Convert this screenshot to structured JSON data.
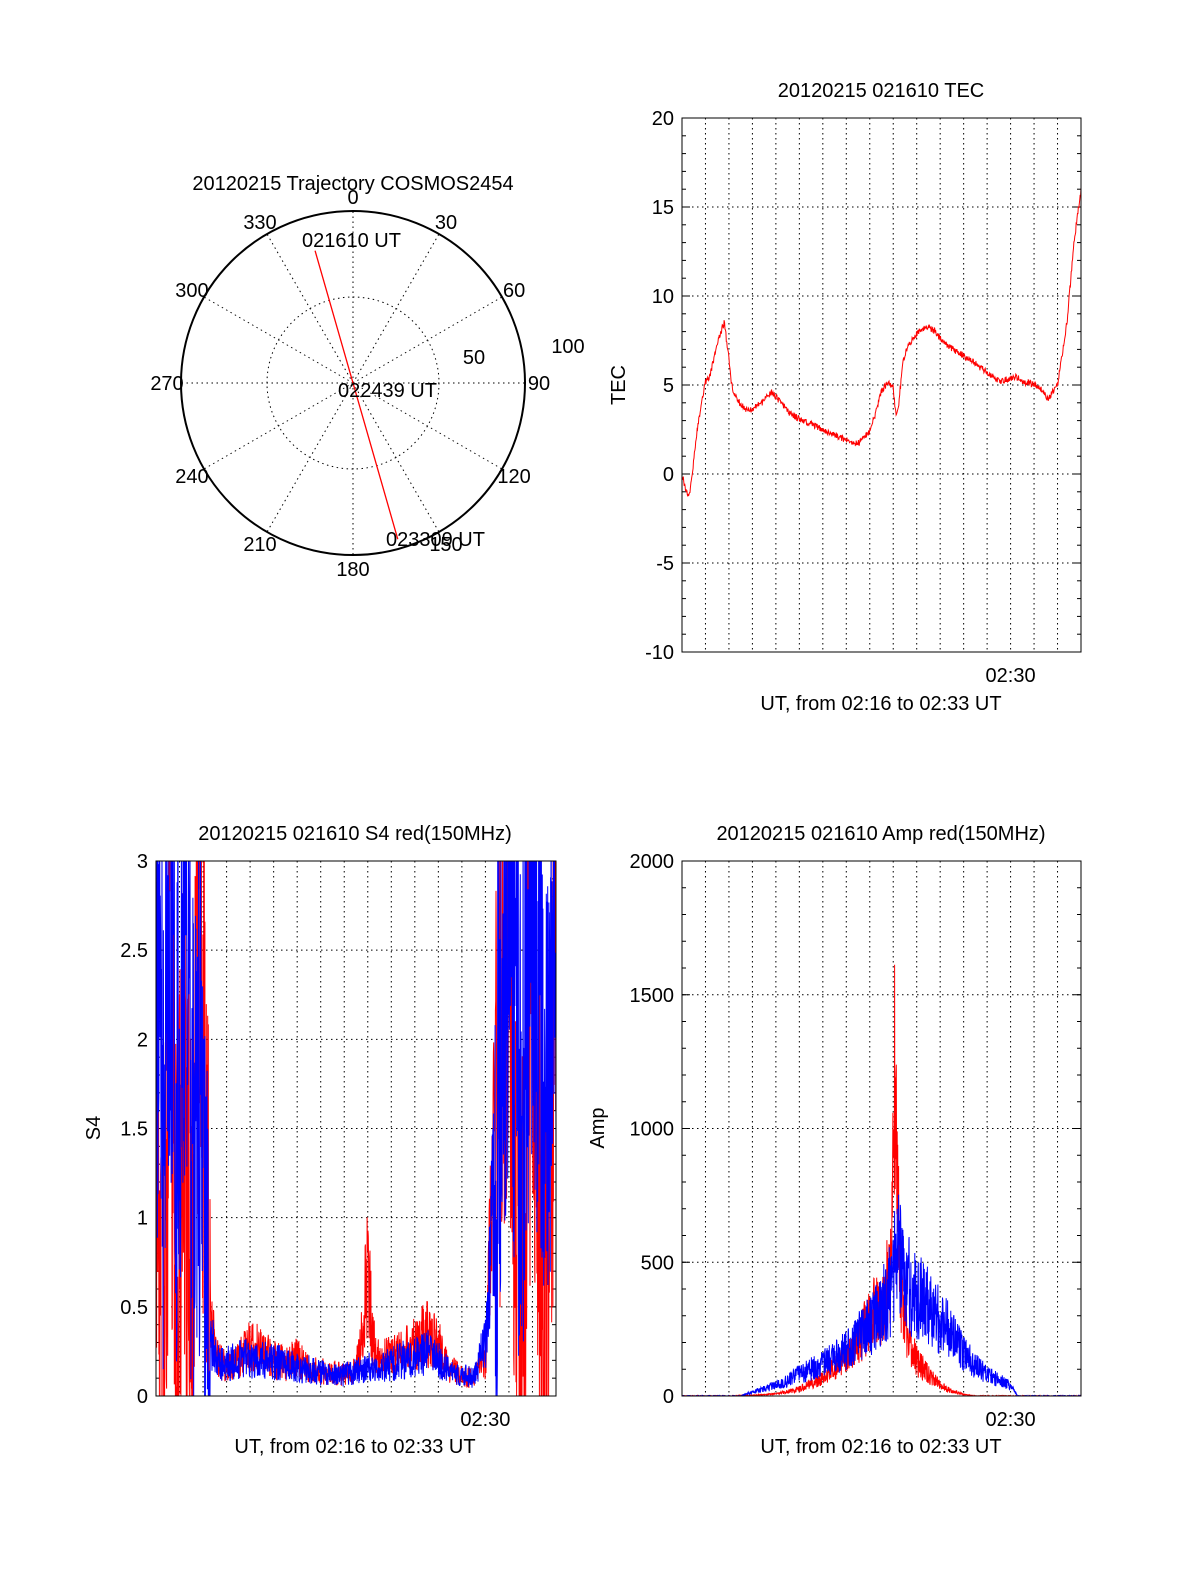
{
  "chart_data": [
    {
      "type": "polar",
      "title": "20120215 Trajectory COSMOS2454",
      "angle_labels": [
        "0",
        "30",
        "60",
        "90",
        "120",
        "150",
        "180",
        "210",
        "240",
        "270",
        "300",
        "330"
      ],
      "radius_labels": [
        "50",
        "100"
      ],
      "series": [
        {
          "color": "#ff0000",
          "points": [
            {
              "azimuth": 344,
              "elevation": 18,
              "label": "021610 UT"
            },
            {
              "azimuth": 90,
              "elevation": 90,
              "label": "022439 UT"
            },
            {
              "azimuth": 164,
              "elevation": 5,
              "label": "023309 UT"
            }
          ]
        }
      ]
    },
    {
      "type": "line",
      "title": "20120215 021610 TEC",
      "xlabel": "UT, from 02:16 to 02:33 UT",
      "ylabel": "TEC",
      "xlim": [
        0,
        17
      ],
      "ylim": [
        -10,
        20
      ],
      "yticks": [
        "20",
        "15",
        "10",
        "5",
        "0",
        "-5",
        "-10"
      ],
      "xtick_label": "02:30",
      "xtick_pos": 14,
      "grid": true,
      "series": [
        {
          "color": "#ff0000",
          "x": [
            0,
            0.15,
            0.3,
            0.45,
            0.6,
            0.8,
            1.0,
            1.2,
            1.4,
            1.6,
            1.8,
            2.0,
            2.1,
            2.2,
            2.4,
            2.7,
            3.0,
            3.4,
            3.8,
            4.3,
            4.6,
            5.0,
            5.5,
            6.0,
            6.5,
            7.0,
            7.5,
            8.0,
            8.2,
            8.5,
            8.8,
            9.0,
            9.1,
            9.2,
            9.4,
            9.6,
            10.0,
            10.4,
            10.8,
            11.0,
            11.3,
            11.8,
            12.3,
            12.7,
            13.2,
            13.6,
            14.0,
            14.2,
            14.5,
            14.8,
            15.0,
            15.3,
            15.6,
            16.0,
            16.4,
            16.7,
            17.0
          ],
          "y": [
            0,
            -0.8,
            -1.3,
            0.2,
            2.0,
            3.8,
            5.2,
            5.5,
            6.8,
            7.8,
            8.5,
            6.5,
            5.2,
            4.6,
            4.1,
            3.6,
            3.7,
            4.0,
            4.6,
            3.9,
            3.4,
            3.1,
            2.8,
            2.5,
            2.2,
            1.9,
            1.7,
            2.4,
            3.2,
            4.7,
            5.1,
            4.9,
            3.4,
            3.5,
            6.2,
            7.1,
            7.9,
            8.3,
            8.0,
            7.6,
            7.2,
            6.8,
            6.4,
            6.0,
            5.5,
            5.2,
            5.4,
            5.5,
            5.2,
            5.1,
            5.0,
            4.8,
            4.2,
            5.0,
            8.5,
            13.0,
            16.0
          ]
        }
      ]
    },
    {
      "type": "line",
      "title": "20120215 021610 S4 red(150MHz)",
      "xlabel": "UT, from 02:16 to 02:33 UT",
      "ylabel": "S4",
      "xlim": [
        0,
        17
      ],
      "ylim": [
        0,
        3
      ],
      "yticks": [
        "3",
        "2.5",
        "2",
        "1.5",
        "1",
        "0.5",
        "0"
      ],
      "xtick_label": "02:30",
      "xtick_pos": 14,
      "grid": true,
      "series": [
        {
          "color": "#ff0000",
          "x": [
            0,
            0.3,
            0.6,
            0.9,
            1.2,
            1.5,
            1.8,
            2.1,
            2.3,
            2.6,
            3.0,
            3.5,
            4.0,
            4.5,
            5.0,
            5.5,
            6.0,
            6.5,
            7.0,
            7.5,
            8.0,
            8.5,
            8.8,
            9.0,
            9.2,
            9.5,
            10.0,
            10.5,
            11.0,
            11.5,
            12.0,
            12.5,
            13.0,
            13.5,
            14.0,
            14.5,
            15.0,
            15.5,
            16.0,
            16.5,
            17.0
          ],
          "y": [
            1.8,
            0.2,
            2.6,
            0.1,
            1.9,
            0.3,
            2.8,
            1.2,
            0.5,
            0.22,
            0.15,
            0.2,
            0.28,
            0.25,
            0.2,
            0.18,
            0.22,
            0.15,
            0.14,
            0.13,
            0.12,
            0.15,
            0.35,
            0.8,
            0.3,
            0.2,
            0.22,
            0.25,
            0.3,
            0.35,
            0.28,
            0.15,
            0.12,
            0.1,
            0.2,
            1.8,
            2.9,
            0.1,
            2.7,
            0.1,
            2.5
          ]
        },
        {
          "color": "#0000ff",
          "x": [
            0,
            0.3,
            0.6,
            0.9,
            1.2,
            1.5,
            1.8,
            2.1,
            2.3,
            2.6,
            3.0,
            3.5,
            4.0,
            4.5,
            5.0,
            5.5,
            6.0,
            6.5,
            7.0,
            7.5,
            8.0,
            8.5,
            9.0,
            9.5,
            10.0,
            10.5,
            11.0,
            11.5,
            12.0,
            12.5,
            13.0,
            13.5,
            14.0,
            14.5,
            15.0,
            15.5,
            16.0,
            16.5,
            17.0
          ],
          "y": [
            2.2,
            1.6,
            2.8,
            1.7,
            2.5,
            1.4,
            1.9,
            0.9,
            0.35,
            0.2,
            0.18,
            0.2,
            0.22,
            0.2,
            0.19,
            0.18,
            0.16,
            0.15,
            0.13,
            0.12,
            0.12,
            0.14,
            0.16,
            0.15,
            0.18,
            0.2,
            0.22,
            0.25,
            0.2,
            0.15,
            0.12,
            0.1,
            0.3,
            1.5,
            2.8,
            1.6,
            2.9,
            1.8,
            2.7
          ]
        }
      ]
    },
    {
      "type": "line",
      "title": "20120215 021610 Amp red(150MHz)",
      "xlabel": "UT, from 02:16 to 02:33 UT",
      "ylabel": "Amp",
      "xlim": [
        0,
        17
      ],
      "ylim": [
        0,
        2000
      ],
      "yticks": [
        "2000",
        "1500",
        "1000",
        "500",
        "0"
      ],
      "xtick_label": "02:30",
      "xtick_pos": 14,
      "grid": true,
      "series": [
        {
          "color": "#ff0000",
          "x": [
            0,
            2.0,
            3.0,
            4.0,
            5.0,
            6.0,
            7.0,
            7.5,
            8.0,
            8.5,
            8.9,
            9.1,
            9.3,
            9.6,
            10.0,
            10.5,
            11.0,
            11.5,
            12.0,
            12.5,
            17.0
          ],
          "y": [
            0,
            0,
            2,
            8,
            25,
            70,
            140,
            210,
            290,
            330,
            480,
            1360,
            420,
            210,
            130,
            80,
            40,
            18,
            6,
            0,
            0
          ]
        },
        {
          "color": "#0000ff",
          "x": [
            0,
            2.5,
            3.0,
            4.0,
            5.0,
            6.0,
            7.0,
            8.0,
            8.5,
            8.9,
            9.1,
            9.3,
            9.6,
            10.0,
            10.5,
            11.0,
            11.5,
            12.0,
            12.5,
            13.0,
            13.5,
            14.0,
            14.3,
            17.0
          ],
          "y": [
            0,
            0,
            15,
            40,
            80,
            120,
            170,
            260,
            330,
            400,
            560,
            500,
            420,
            380,
            330,
            280,
            230,
            160,
            110,
            80,
            60,
            40,
            0,
            0
          ]
        }
      ]
    }
  ]
}
